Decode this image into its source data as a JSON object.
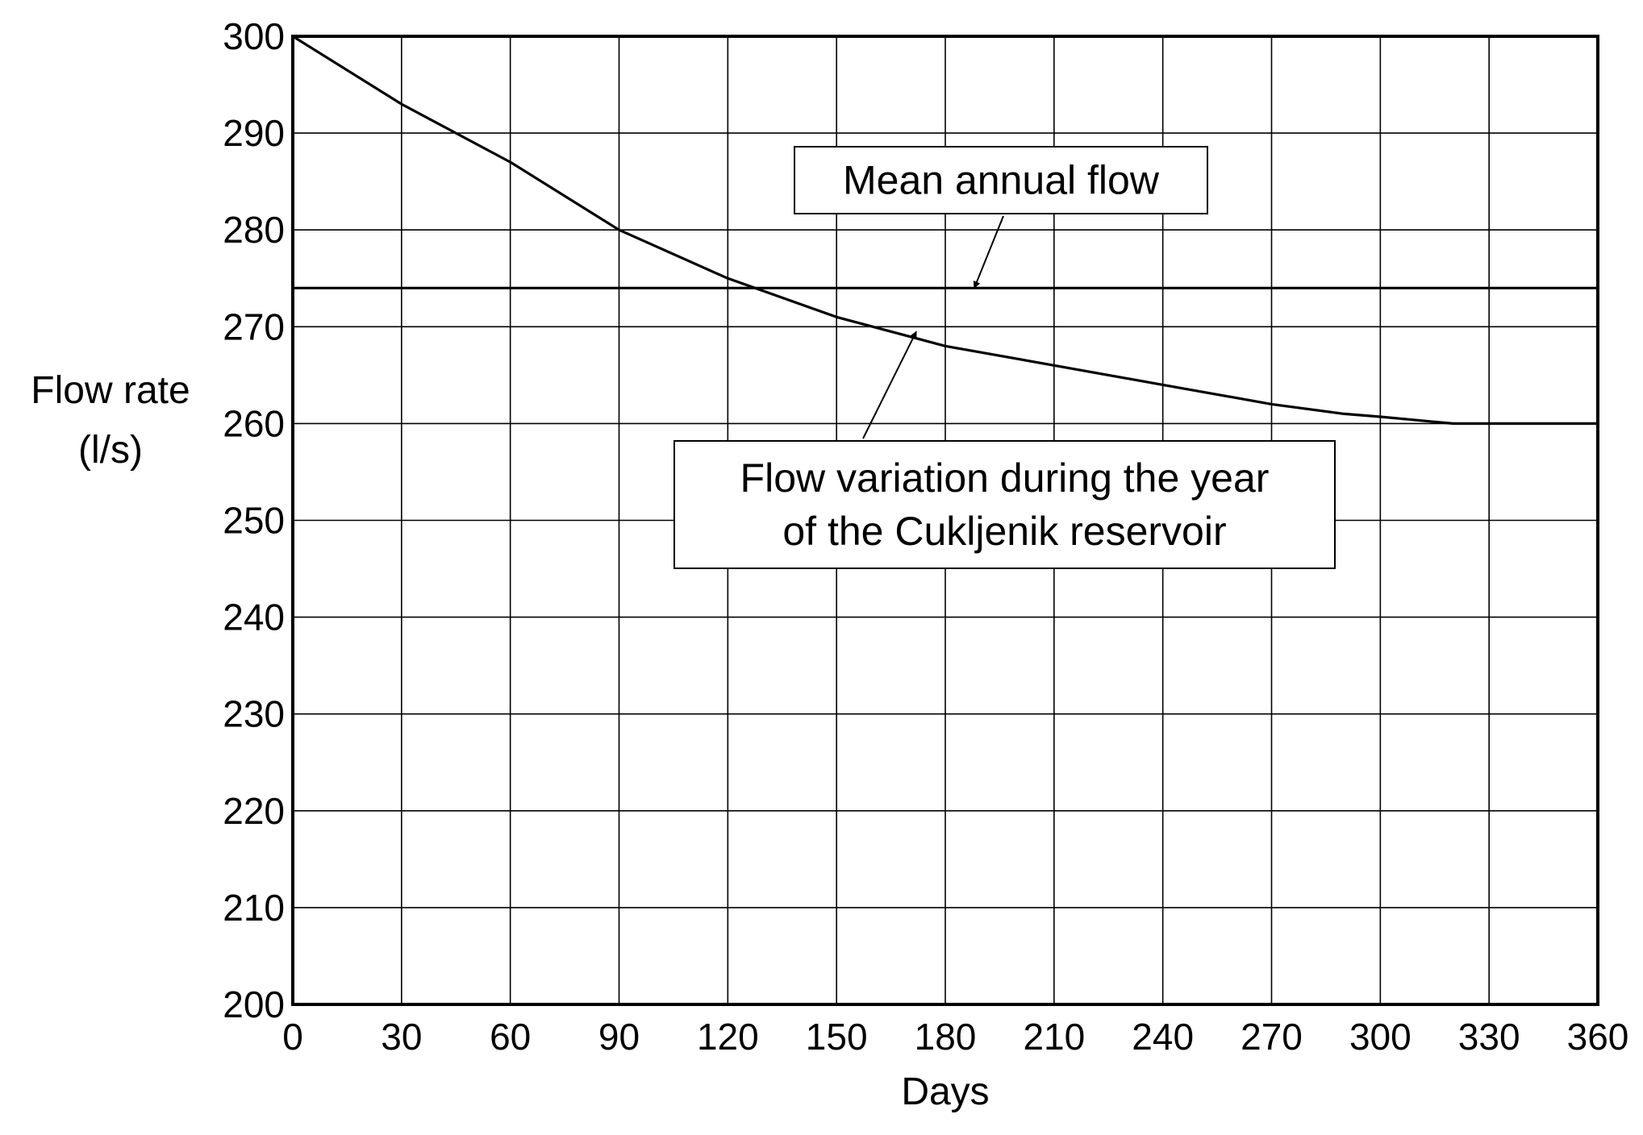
{
  "chart_data": {
    "type": "line",
    "xlabel": "Days",
    "ylabel_line1": "Flow rate",
    "ylabel_line2": "(l/s)",
    "xlim": [
      0,
      360
    ],
    "ylim": [
      200,
      300
    ],
    "x_ticks": [
      "0",
      "30",
      "60",
      "90",
      "120",
      "150",
      "180",
      "210",
      "240",
      "270",
      "300",
      "330",
      "360"
    ],
    "y_ticks": [
      "200",
      "210",
      "220",
      "230",
      "240",
      "250",
      "260",
      "270",
      "280",
      "290",
      "300"
    ],
    "grid": true,
    "legend": "none",
    "series": [
      {
        "x": [
          0,
          30,
          60,
          90,
          120,
          150,
          180,
          210,
          240,
          270,
          290,
          300,
          320,
          330,
          360
        ],
        "y": [
          300,
          293,
          287,
          280,
          275,
          271,
          268,
          266,
          264,
          262,
          261,
          260.7,
          260,
          260,
          260
        ]
      },
      {
        "x": [
          0,
          360
        ],
        "y": [
          274,
          274
        ]
      }
    ],
    "annotations": [
      {
        "lines": [
          "Mean annual flow"
        ],
        "points_to": {
          "x": 188,
          "y": 274
        }
      },
      {
        "lines": [
          "Flow variation during the year",
          "of the Cukljenik reservoir"
        ],
        "points_to": {
          "x": 172,
          "y": 269.5
        }
      }
    ]
  }
}
